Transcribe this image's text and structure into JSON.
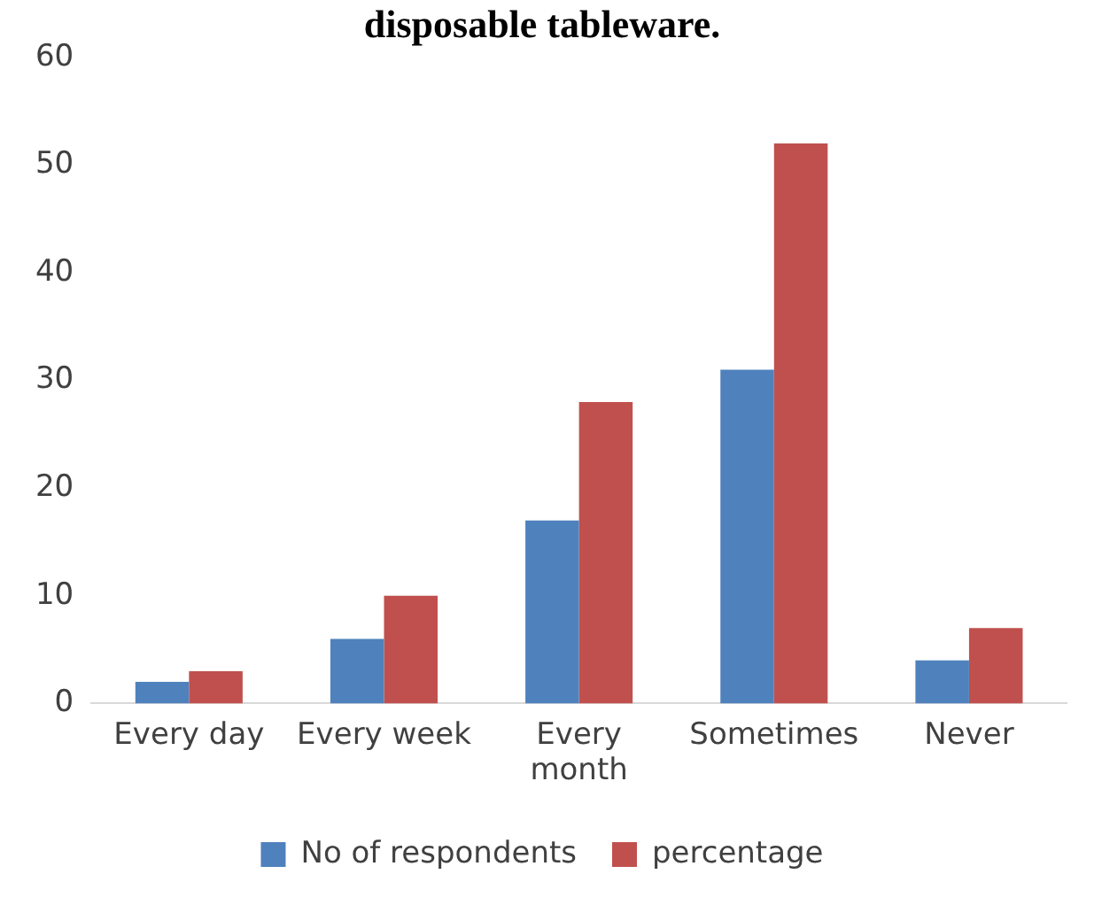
{
  "chart_data": {
    "type": "bar",
    "title": "disposable tableware.",
    "categories": [
      "Every day",
      "Every week",
      "Every month",
      "Sometimes",
      "Never"
    ],
    "series": [
      {
        "name": "No of respondents",
        "color": "#4f81bd",
        "values": [
          2,
          6,
          17,
          31,
          4
        ]
      },
      {
        "name": "percentage",
        "color": "#c0504d",
        "values": [
          3,
          10,
          28,
          52,
          7
        ]
      }
    ],
    "ylim": [
      0,
      60
    ],
    "yticks": [
      0,
      10,
      20,
      30,
      40,
      50,
      60
    ],
    "grid": false,
    "legend": "bottom"
  }
}
